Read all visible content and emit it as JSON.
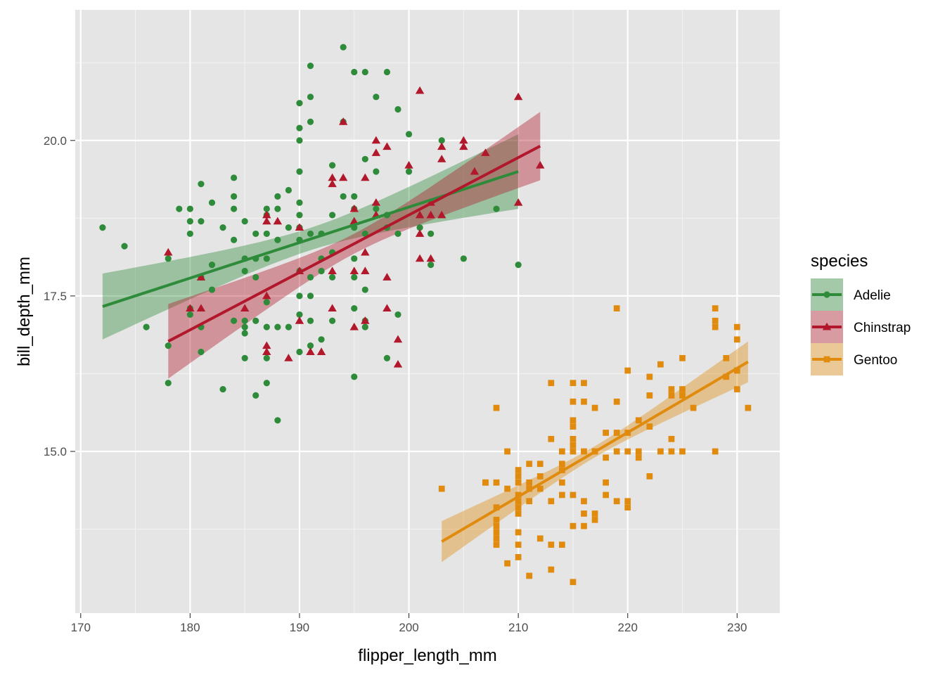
{
  "chart_data": {
    "type": "scatter",
    "title": "",
    "xlabel": "flipper_length_mm",
    "ylabel": "bill_depth_mm",
    "xlim": [
      169.5,
      233.9
    ],
    "ylim": [
      12.4,
      22.1
    ],
    "x_ticks": [
      170,
      180,
      190,
      200,
      210,
      220,
      230
    ],
    "x_tick_labels": [
      "170",
      "180",
      "190",
      "200",
      "210",
      "220",
      "230"
    ],
    "y_ticks": [
      15.0,
      17.5,
      20.0
    ],
    "y_tick_labels": [
      "15.0",
      "17.5",
      "20.0"
    ],
    "grid": true,
    "background": "#e5e5e5",
    "legend": {
      "title": "species",
      "position": "right",
      "entries": [
        "Adelie",
        "Chinstrap",
        "Gentoo"
      ]
    },
    "series": [
      {
        "name": "Adelie",
        "color": "#2e8b3a",
        "marker": "circle",
        "fit": {
          "x": [
            172,
            210
          ],
          "y": [
            17.33,
            19.5
          ],
          "ci_halfwidth_ends": [
            0.53,
            0.6
          ],
          "ci_halfwidth_mid": 0.18
        },
        "points": [
          [
            172,
            18.6
          ],
          [
            174,
            18.3
          ],
          [
            176,
            17.0
          ],
          [
            178,
            18.1
          ],
          [
            178,
            16.7
          ],
          [
            178,
            16.1
          ],
          [
            179,
            18.9
          ],
          [
            180,
            18.9
          ],
          [
            180,
            18.7
          ],
          [
            180,
            18.5
          ],
          [
            180,
            17.3
          ],
          [
            180,
            17.2
          ],
          [
            181,
            19.3
          ],
          [
            181,
            18.7
          ],
          [
            181,
            17.8
          ],
          [
            181,
            17.0
          ],
          [
            181,
            16.6
          ],
          [
            182,
            19.0
          ],
          [
            182,
            18.0
          ],
          [
            182,
            17.6
          ],
          [
            183,
            18.6
          ],
          [
            183,
            16.0
          ],
          [
            184,
            19.4
          ],
          [
            184,
            19.1
          ],
          [
            184,
            18.9
          ],
          [
            184,
            18.4
          ],
          [
            184,
            17.1
          ],
          [
            185,
            18.7
          ],
          [
            185,
            18.1
          ],
          [
            185,
            17.9
          ],
          [
            185,
            17.1
          ],
          [
            185,
            17.0
          ],
          [
            185,
            16.9
          ],
          [
            185,
            16.5
          ],
          [
            186,
            18.5
          ],
          [
            186,
            18.1
          ],
          [
            186,
            17.8
          ],
          [
            186,
            17.1
          ],
          [
            186,
            15.9
          ],
          [
            187,
            18.9
          ],
          [
            187,
            18.8
          ],
          [
            187,
            18.5
          ],
          [
            187,
            18.1
          ],
          [
            187,
            17.4
          ],
          [
            187,
            17.0
          ],
          [
            187,
            16.5
          ],
          [
            187,
            16.1
          ],
          [
            188,
            19.1
          ],
          [
            188,
            18.9
          ],
          [
            188,
            18.4
          ],
          [
            188,
            17.0
          ],
          [
            188,
            15.5
          ],
          [
            189,
            19.2
          ],
          [
            189,
            18.6
          ],
          [
            189,
            17.0
          ],
          [
            190,
            20.6
          ],
          [
            190,
            20.2
          ],
          [
            190,
            20.0
          ],
          [
            190,
            19.5
          ],
          [
            190,
            19.0
          ],
          [
            190,
            18.8
          ],
          [
            190,
            18.6
          ],
          [
            190,
            18.4
          ],
          [
            190,
            17.9
          ],
          [
            190,
            17.5
          ],
          [
            190,
            17.2
          ],
          [
            190,
            16.6
          ],
          [
            191,
            21.2
          ],
          [
            191,
            20.7
          ],
          [
            191,
            20.3
          ],
          [
            191,
            18.5
          ],
          [
            191,
            17.8
          ],
          [
            191,
            17.5
          ],
          [
            191,
            17.1
          ],
          [
            191,
            16.7
          ],
          [
            192,
            18.5
          ],
          [
            192,
            18.1
          ],
          [
            192,
            17.9
          ],
          [
            192,
            16.8
          ],
          [
            193,
            19.6
          ],
          [
            193,
            18.8
          ],
          [
            193,
            18.2
          ],
          [
            193,
            17.8
          ],
          [
            193,
            17.1
          ],
          [
            194,
            21.5
          ],
          [
            194,
            20.3
          ],
          [
            194,
            19.1
          ],
          [
            195,
            21.1
          ],
          [
            195,
            19.1
          ],
          [
            195,
            18.9
          ],
          [
            195,
            18.6
          ],
          [
            195,
            18.1
          ],
          [
            195,
            17.8
          ],
          [
            195,
            17.3
          ],
          [
            195,
            16.2
          ],
          [
            196,
            21.1
          ],
          [
            196,
            19.7
          ],
          [
            196,
            18.5
          ],
          [
            196,
            17.6
          ],
          [
            196,
            17.0
          ],
          [
            196,
            17.1
          ],
          [
            197,
            20.7
          ],
          [
            197,
            19.5
          ],
          [
            197,
            18.9
          ],
          [
            198,
            21.1
          ],
          [
            198,
            18.8
          ],
          [
            198,
            18.6
          ],
          [
            198,
            16.5
          ],
          [
            199,
            20.5
          ],
          [
            199,
            18.5
          ],
          [
            199,
            17.2
          ],
          [
            200,
            20.1
          ],
          [
            200,
            19.5
          ],
          [
            201,
            18.6
          ],
          [
            202,
            18.5
          ],
          [
            202,
            18.0
          ],
          [
            203,
            20.0
          ],
          [
            205,
            18.1
          ],
          [
            208,
            18.9
          ],
          [
            210,
            18.0
          ]
        ]
      },
      {
        "name": "Chinstrap",
        "color": "#b2182b",
        "marker": "triangle",
        "fit": {
          "x": [
            178,
            212
          ],
          "y": [
            16.77,
            19.91
          ],
          "ci_halfwidth_ends": [
            0.6,
            0.55
          ],
          "ci_halfwidth_mid": 0.16
        },
        "points": [
          [
            178,
            18.2
          ],
          [
            180,
            17.3
          ],
          [
            181,
            17.8
          ],
          [
            181,
            17.3
          ],
          [
            185,
            17.3
          ],
          [
            187,
            18.7
          ],
          [
            187,
            18.8
          ],
          [
            187,
            17.5
          ],
          [
            187,
            16.7
          ],
          [
            187,
            16.6
          ],
          [
            188,
            18.7
          ],
          [
            189,
            16.5
          ],
          [
            190,
            18.6
          ],
          [
            190,
            17.9
          ],
          [
            190,
            17.1
          ],
          [
            191,
            16.6
          ],
          [
            192,
            16.6
          ],
          [
            193,
            19.4
          ],
          [
            193,
            19.3
          ],
          [
            193,
            17.9
          ],
          [
            193,
            17.3
          ],
          [
            194,
            20.3
          ],
          [
            194,
            19.4
          ],
          [
            195,
            18.9
          ],
          [
            195,
            18.7
          ],
          [
            195,
            17.9
          ],
          [
            195,
            17.0
          ],
          [
            196,
            19.4
          ],
          [
            196,
            18.2
          ],
          [
            196,
            17.9
          ],
          [
            196,
            17.1
          ],
          [
            197,
            20.0
          ],
          [
            197,
            19.8
          ],
          [
            197,
            19.0
          ],
          [
            197,
            18.8
          ],
          [
            198,
            19.9
          ],
          [
            198,
            17.3
          ],
          [
            198,
            17.8
          ],
          [
            199,
            16.8
          ],
          [
            199,
            16.4
          ],
          [
            200,
            19.6
          ],
          [
            201,
            20.8
          ],
          [
            201,
            18.8
          ],
          [
            201,
            18.5
          ],
          [
            201,
            18.1
          ],
          [
            202,
            19.0
          ],
          [
            202,
            18.8
          ],
          [
            202,
            18.1
          ],
          [
            203,
            19.9
          ],
          [
            203,
            19.7
          ],
          [
            203,
            18.8
          ],
          [
            205,
            20.0
          ],
          [
            205,
            19.9
          ],
          [
            206,
            19.5
          ],
          [
            207,
            19.8
          ],
          [
            210,
            20.7
          ],
          [
            210,
            19.0
          ],
          [
            212,
            19.6
          ]
        ]
      },
      {
        "name": "Gentoo",
        "color": "#e08b0e",
        "marker": "square",
        "fit": {
          "x": [
            203,
            231
          ],
          "y": [
            13.55,
            16.44
          ],
          "ci_halfwidth_ends": [
            0.33,
            0.33
          ],
          "ci_halfwidth_mid": 0.09
        },
        "points": [
          [
            203,
            14.4
          ],
          [
            207,
            14.5
          ],
          [
            207,
            14.5
          ],
          [
            208,
            15.7
          ],
          [
            208,
            14.5
          ],
          [
            208,
            14.1
          ],
          [
            208,
            13.9
          ],
          [
            208,
            13.8
          ],
          [
            208,
            13.7
          ],
          [
            208,
            13.6
          ],
          [
            208,
            13.5
          ],
          [
            209,
            15.0
          ],
          [
            209,
            14.4
          ],
          [
            209,
            13.2
          ],
          [
            210,
            14.7
          ],
          [
            210,
            14.6
          ],
          [
            210,
            14.5
          ],
          [
            210,
            14.3
          ],
          [
            210,
            14.2
          ],
          [
            210,
            14.1
          ],
          [
            210,
            14.0
          ],
          [
            210,
            13.7
          ],
          [
            210,
            13.5
          ],
          [
            210,
            13.3
          ],
          [
            211,
            14.8
          ],
          [
            211,
            14.5
          ],
          [
            211,
            14.4
          ],
          [
            211,
            14.2
          ],
          [
            211,
            13.0
          ],
          [
            212,
            14.8
          ],
          [
            212,
            14.6
          ],
          [
            212,
            14.4
          ],
          [
            212,
            13.6
          ],
          [
            213,
            16.1
          ],
          [
            213,
            15.2
          ],
          [
            213,
            14.2
          ],
          [
            213,
            13.5
          ],
          [
            213,
            13.1
          ],
          [
            214,
            15.0
          ],
          [
            214,
            14.7
          ],
          [
            214,
            14.5
          ],
          [
            214,
            14.3
          ],
          [
            214,
            13.5
          ],
          [
            214,
            14.8
          ],
          [
            215,
            16.1
          ],
          [
            215,
            15.8
          ],
          [
            215,
            15.5
          ],
          [
            215,
            15.4
          ],
          [
            215,
            15.2
          ],
          [
            215,
            15.1
          ],
          [
            215,
            15.0
          ],
          [
            215,
            14.3
          ],
          [
            215,
            13.8
          ],
          [
            215,
            12.9
          ],
          [
            216,
            16.1
          ],
          [
            216,
            15.8
          ],
          [
            216,
            15.0
          ],
          [
            216,
            14.2
          ],
          [
            216,
            14.0
          ],
          [
            216,
            13.8
          ],
          [
            217,
            15.7
          ],
          [
            217,
            15.0
          ],
          [
            217,
            14.0
          ],
          [
            217,
            13.9
          ],
          [
            218,
            15.3
          ],
          [
            218,
            14.9
          ],
          [
            218,
            14.5
          ],
          [
            218,
            14.3
          ],
          [
            219,
            17.3
          ],
          [
            219,
            15.8
          ],
          [
            219,
            15.3
          ],
          [
            219,
            15.0
          ],
          [
            219,
            14.2
          ],
          [
            220,
            16.3
          ],
          [
            220,
            15.3
          ],
          [
            220,
            15.0
          ],
          [
            220,
            14.2
          ],
          [
            220,
            14.1
          ],
          [
            221,
            15.5
          ],
          [
            221,
            15.0
          ],
          [
            221,
            14.9
          ],
          [
            222,
            16.2
          ],
          [
            222,
            15.9
          ],
          [
            222,
            15.4
          ],
          [
            222,
            14.6
          ],
          [
            223,
            16.4
          ],
          [
            223,
            15.0
          ],
          [
            224,
            16.0
          ],
          [
            224,
            15.2
          ],
          [
            224,
            15.0
          ],
          [
            224,
            15.9
          ],
          [
            225,
            16.5
          ],
          [
            225,
            16.0
          ],
          [
            225,
            15.9
          ],
          [
            225,
            15.0
          ],
          [
            226,
            15.7
          ],
          [
            228,
            17.3
          ],
          [
            228,
            17.1
          ],
          [
            228,
            17.0
          ],
          [
            228,
            15.0
          ],
          [
            229,
            16.5
          ],
          [
            229,
            16.2
          ],
          [
            230,
            17.0
          ],
          [
            230,
            16.8
          ],
          [
            230,
            16.3
          ],
          [
            230,
            16.0
          ],
          [
            231,
            15.7
          ]
        ]
      }
    ]
  }
}
